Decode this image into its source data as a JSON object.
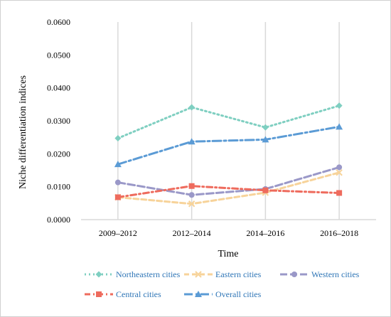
{
  "chart_data": {
    "type": "line",
    "categories": [
      "2009–2012",
      "2012–2014",
      "2014–2016",
      "2016–2018"
    ],
    "xlabel": "Time",
    "ylabel": "Niche differentiation indices",
    "ylim": [
      0,
      0.06
    ],
    "yticks": [
      "0.0000",
      "0.0100",
      "0.0200",
      "0.0300",
      "0.0400",
      "0.0500",
      "0.0600"
    ],
    "grid": {
      "horizontal": false,
      "vertical": true
    },
    "legend_position": "bottom",
    "series": [
      {
        "name": "Northeastern cities",
        "values": [
          0.0247,
          0.0341,
          0.028,
          0.0346
        ],
        "color": "#7fcfc1",
        "marker": "diamond",
        "dash": "dot"
      },
      {
        "name": "Eastern cities",
        "values": [
          0.0068,
          0.0048,
          0.0082,
          0.0143
        ],
        "color": "#f7d39a",
        "marker": "x",
        "dash": "dash"
      },
      {
        "name": "Western cities",
        "values": [
          0.0113,
          0.0075,
          0.0093,
          0.0159
        ],
        "color": "#9a98c8",
        "marker": "circle",
        "dash": "longdash"
      },
      {
        "name": "Central cities",
        "values": [
          0.0068,
          0.0102,
          0.0089,
          0.0081
        ],
        "color": "#ee6b5d",
        "marker": "square",
        "dash": "dashdot"
      },
      {
        "name": "Overall cities",
        "values": [
          0.0168,
          0.0237,
          0.0243,
          0.0282
        ],
        "color": "#5b9bd5",
        "marker": "triangle",
        "dash": "longdashdot"
      }
    ]
  }
}
